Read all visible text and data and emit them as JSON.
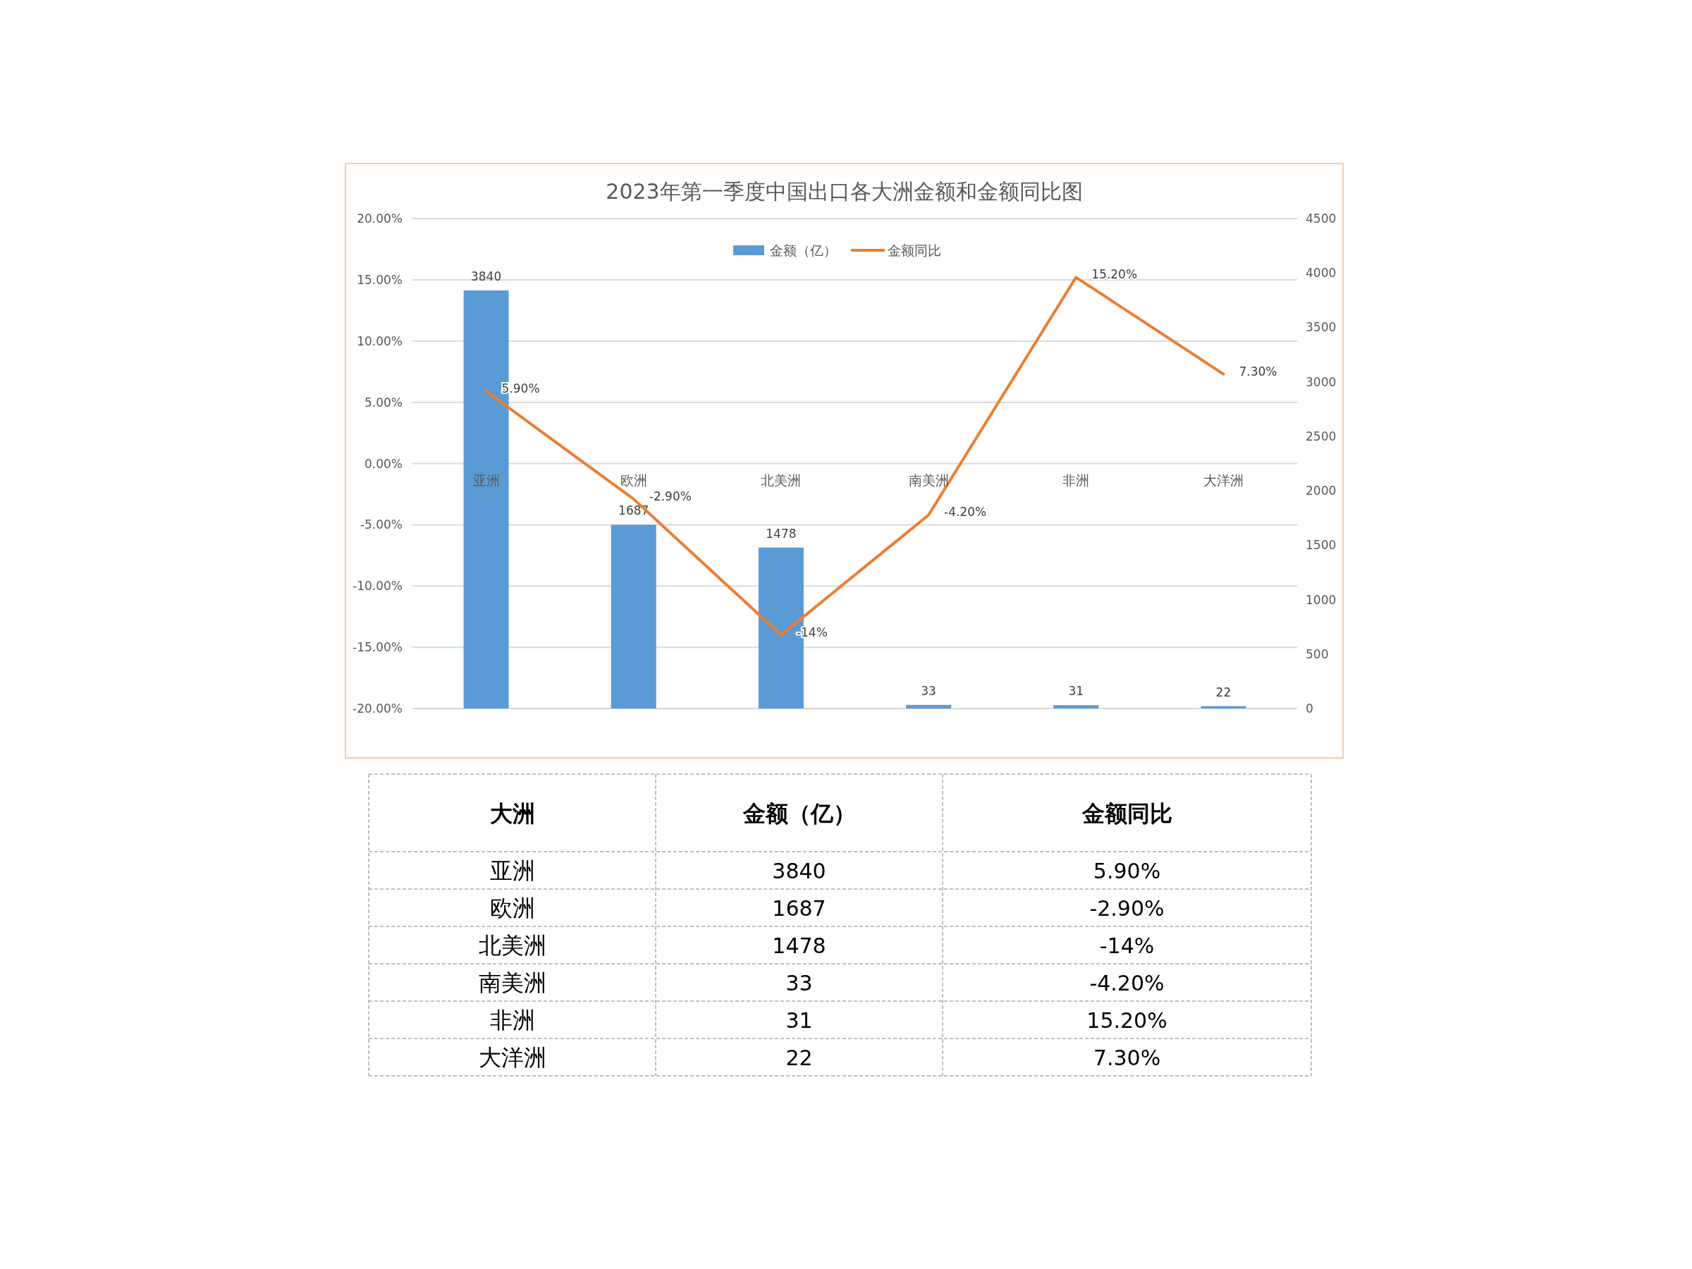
{
  "chart_data": {
    "type": "bar",
    "title": "2023年第一季度中国出口各大洲金额和金额同比图",
    "xlabel": "大洲",
    "categories": [
      "亚洲",
      "欧洲",
      "北美洲",
      "南美洲",
      "非洲",
      "大洋洲"
    ],
    "series": [
      {
        "name": "金额（亿）",
        "axis": "y2",
        "color": "#5b9bd5",
        "values": [
          3840,
          1687,
          1478,
          33,
          31,
          22
        ],
        "value_labels": [
          "3840",
          "1687",
          "1478",
          "33",
          "31",
          "22"
        ]
      },
      {
        "name": "金额同比",
        "type": "line",
        "color": "#ed7d31",
        "values": [
          5.9,
          -2.9,
          -14,
          -4.2,
          15.2,
          7.3
        ],
        "value_labels": [
          "5.90%",
          "-2.90%",
          "-14%",
          "-4.20%",
          "15.20%",
          "7.30%"
        ]
      }
    ],
    "ylim": [
      -20,
      20
    ],
    "yticks": [
      {
        "value": -20,
        "label": "-20.00%"
      },
      {
        "value": -15,
        "label": "-15.00%"
      },
      {
        "value": -10,
        "label": "-10.00%"
      },
      {
        "value": -5,
        "label": "-5.00%"
      },
      {
        "value": 0,
        "label": "0.00%"
      },
      {
        "value": 5,
        "label": "5.00%"
      },
      {
        "value": 10,
        "label": "10.00%"
      },
      {
        "value": 15,
        "label": "15.00%"
      },
      {
        "value": 20,
        "label": "20.00%"
      }
    ],
    "y2lim": [
      0,
      4500
    ],
    "y2ticks": [
      0,
      500,
      1000,
      1500,
      2000,
      2500,
      3000,
      3500,
      4000,
      4500
    ],
    "grid": "y",
    "legend": "top"
  }
}
